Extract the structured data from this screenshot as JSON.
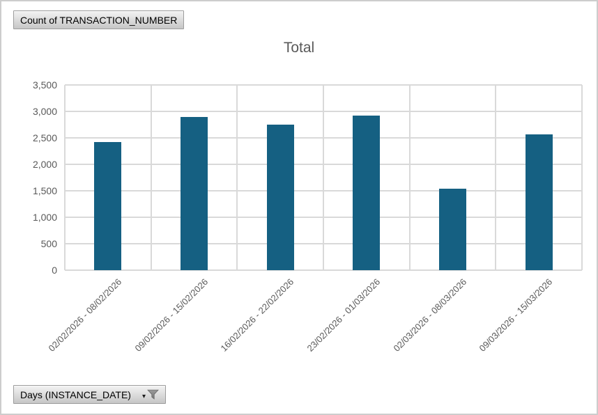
{
  "field_buttons": {
    "value": {
      "label": "Count of TRANSACTION_NUMBER"
    },
    "axis": {
      "label": "Days (INSTANCE_DATE)",
      "dropdown_glyph": "▾"
    }
  },
  "icons": {
    "axis_dropdown": "dropdown-arrow",
    "axis_filter": "funnel-filter"
  },
  "colors": {
    "bar": "#156082",
    "gridline": "#D9D9D9",
    "axis_text": "#595959",
    "title_text": "#595959",
    "button_border": "#9C9C9C",
    "frame_border": "#CDCDCD"
  },
  "chart_data": {
    "type": "bar",
    "title": "Total",
    "categories": [
      "02/02/2026 - 08/02/2026",
      "09/02/2026 - 15/02/2026",
      "16/02/2026 - 22/02/2026",
      "23/02/2026 - 01/03/2026",
      "02/03/2026 - 08/03/2026",
      "09/03/2026 - 15/03/2026"
    ],
    "values": [
      2420,
      2890,
      2750,
      2920,
      1540,
      2560
    ],
    "xlabel": "",
    "ylabel": "",
    "ylim": [
      0,
      3500
    ],
    "ytick_step": 500,
    "ytick_labels": [
      "0",
      "500",
      "1,000",
      "1,500",
      "2,000",
      "2,500",
      "3,000",
      "3,500"
    ],
    "grid": true,
    "legend_position": "none",
    "x_label_rotation_deg": -45,
    "bar_color": "#156082"
  }
}
